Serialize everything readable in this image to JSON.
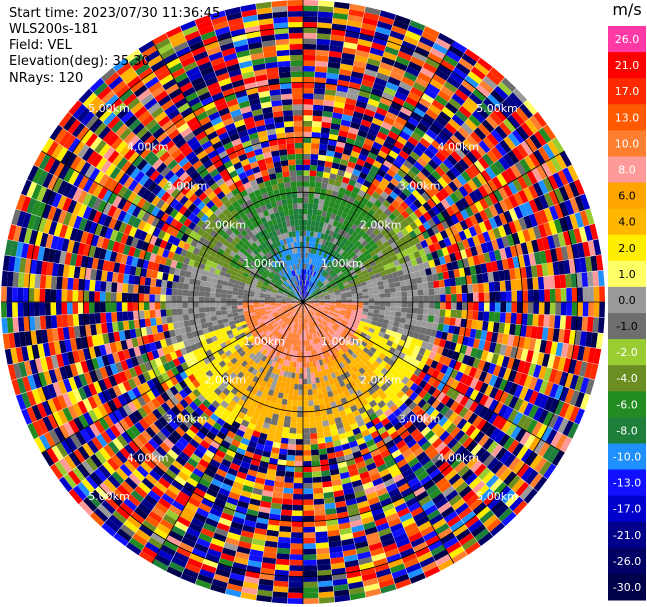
{
  "header": {
    "start_time": "Start time: 2023/07/30 11:36:45",
    "instrument": "WLS200s-181",
    "field": "Field: VEL",
    "elevation": "Elevation(deg): 35.30",
    "nrays": "NRays: 120"
  },
  "chart_data": {
    "type": "heatmap",
    "projection": "polar-ppi",
    "field": "VEL",
    "units": "m/s",
    "nrays": 120,
    "elevation_deg": 35.3,
    "range_rings_km": [
      1,
      2,
      3,
      4,
      5
    ],
    "ring_labels": [
      "1.00km",
      "2.00km",
      "3.00km",
      "4.00km",
      "5.00km"
    ],
    "max_range_km": 5.5,
    "colorbar": {
      "label": "m/s",
      "tick_labels": [
        "26.0",
        "21.0",
        "17.0",
        "13.0",
        "10.0",
        "8.0",
        "6.0",
        "4.0",
        "2.0",
        "1.0",
        "0.0",
        "-1.0",
        "-2.0",
        "-4.0",
        "-6.0",
        "-8.0",
        "-10.0",
        "-13.0",
        "-17.0",
        "-21.0",
        "-26.0",
        "-30.0"
      ],
      "colors": [
        "#ff3aa6",
        "#ff0000",
        "#ff2a00",
        "#ff5a00",
        "#ff7f30",
        "#ff9a9a",
        "#ffa500",
        "#ffb700",
        "#ffee00",
        "#ffff66",
        "#9a9a9a",
        "#6e6e6e",
        "#9acd32",
        "#6b8e23",
        "#228b22",
        "#1e7f3a",
        "#1e90ff",
        "#1010ff",
        "#0000cd",
        "#00008b",
        "#000064",
        "#00004a"
      ]
    },
    "structure": {
      "inner_km": 2.45,
      "north_half": "negative velocities (green, -2 to -8 m/s) with gray 0 to -1 m/s",
      "south_half": "positive velocities (yellow/orange, 2 to 13 m/s) with gray 0 to -1 m/s",
      "outer": "noise - random colours beyond ~2.4 km"
    }
  }
}
